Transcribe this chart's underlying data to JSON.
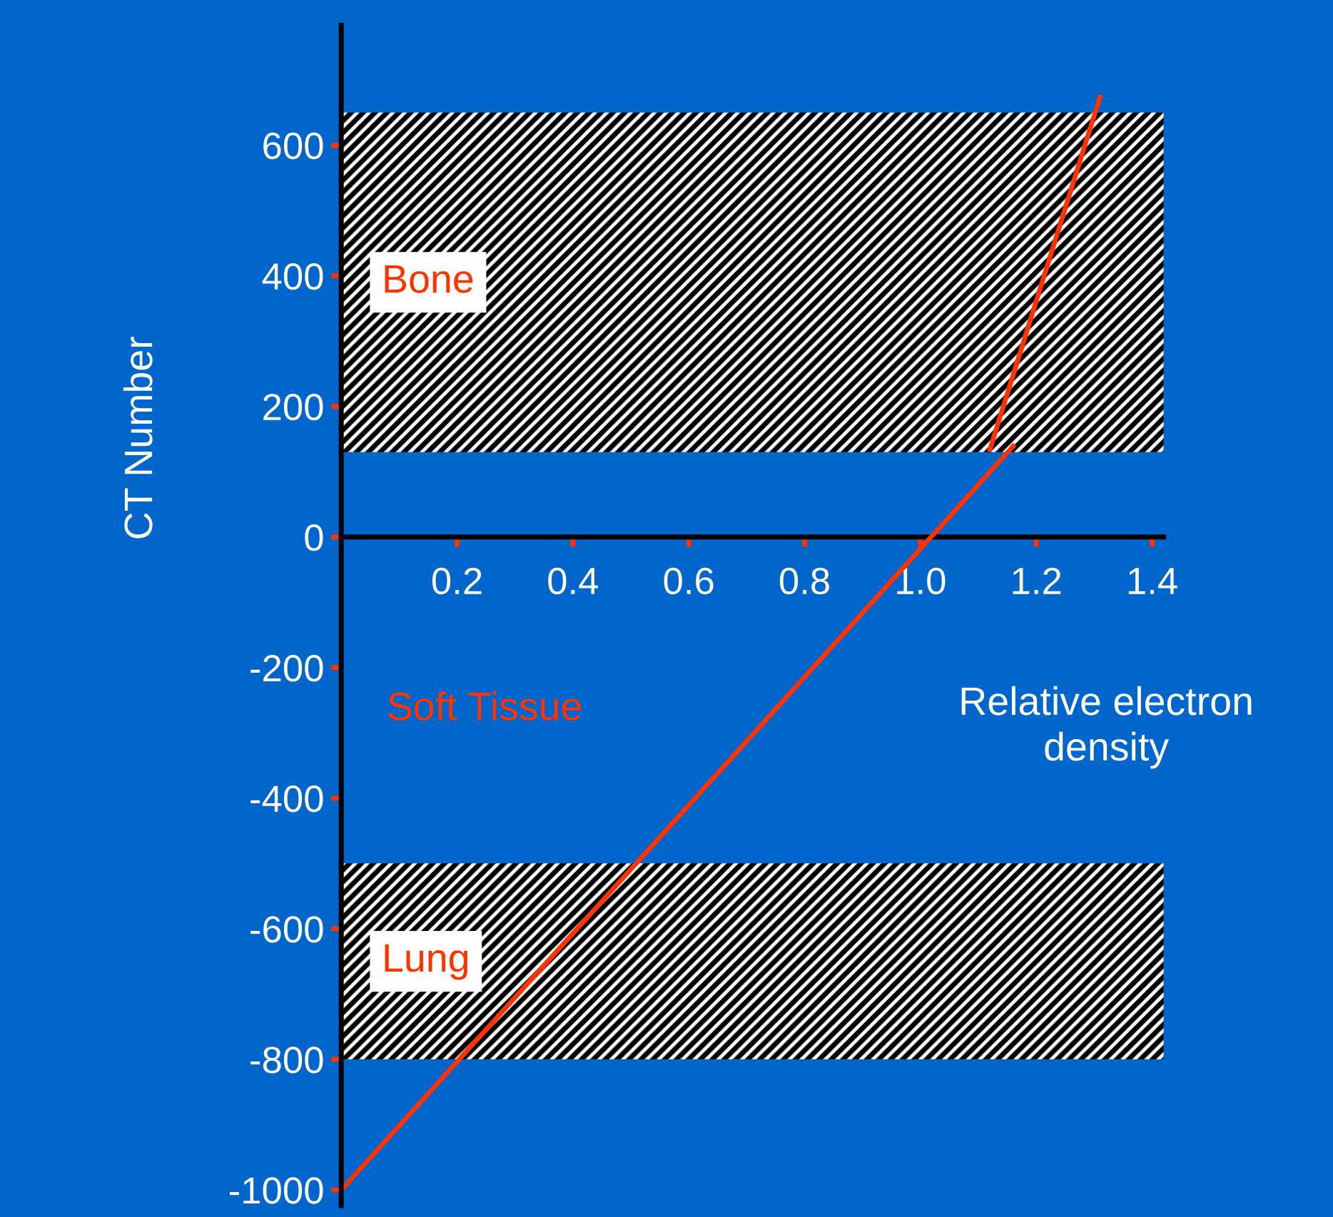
{
  "chart_data": {
    "type": "line",
    "xlabel": "Relative electron\ndensity",
    "ylabel": "CT Number",
    "series": [
      {
        "color": "#ff3300",
        "x": [
          0,
          1.16
        ],
        "values": [
          -1000,
          139
        ]
      },
      {
        "color": "#ff3300",
        "x": [
          1.12,
          1.31
        ],
        "values": [
          134,
          674
        ]
      }
    ],
    "bands": [
      {
        "axis": "y",
        "from": 130,
        "to": 650,
        "label": "Bone",
        "color": "#ffffff"
      },
      {
        "axis": "y",
        "from": -800,
        "to": -500,
        "label": "Lung",
        "color": "#ffffff"
      }
    ],
    "annotations": [
      "Soft Tissue"
    ],
    "xlim": [
      0,
      1.42
    ],
    "ylim": [
      -1024,
      784
    ],
    "xticks": [
      0.2,
      0.4,
      0.6,
      0.8,
      {
        "value": 1.0,
        "label": "1.0"
      },
      1.2,
      1.4
    ],
    "yticks": [
      -1000,
      -800,
      -600,
      -400,
      -200,
      0,
      200,
      400,
      600
    ],
    "grid": false,
    "marker": "none",
    "line_style": "solid"
  }
}
